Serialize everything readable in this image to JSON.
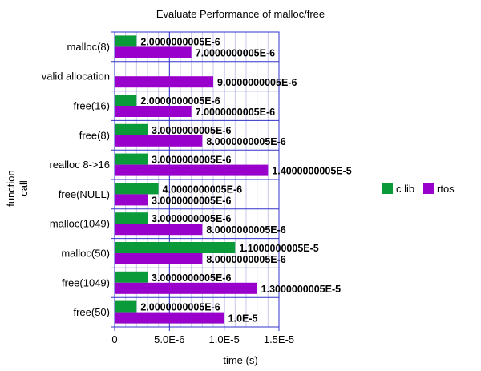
{
  "chart_data": {
    "type": "bar",
    "orientation": "horizontal",
    "title": "Evaluate Performance of malloc/free",
    "xlabel": "time (s)",
    "ylabel": "function call",
    "ylabel_lines": [
      "function",
      "call"
    ],
    "xlim": [
      0,
      1.5e-05
    ],
    "xticks": [
      0,
      5e-06,
      1e-05,
      1.5e-05
    ],
    "xtick_labels": [
      "0",
      "5.0E-6",
      "1.0E-5",
      "1.5E-5"
    ],
    "grid": true,
    "legend_position": "right",
    "categories": [
      "malloc(8)",
      "valid allocation",
      "free(16)",
      "free(8)",
      "realloc 8->16",
      "free(NULL)",
      "malloc(1049)",
      "malloc(50)",
      "free(1049)",
      "free(50)"
    ],
    "series": [
      {
        "name": "c lib",
        "color": "#0a9a3a",
        "values": [
          2.0000000005e-06,
          0,
          2.0000000005e-06,
          3.0000000005e-06,
          3.0000000005e-06,
          4.0000000005e-06,
          3.0000000005e-06,
          1.1000000005e-05,
          3.0000000005e-06,
          2.0000000005e-06
        ],
        "labels": [
          "2.0000000005E-6",
          null,
          "2.0000000005E-6",
          "3.0000000005E-6",
          "3.0000000005E-6",
          "4.0000000005E-6",
          "3.0000000005E-6",
          "1.1000000005E-5",
          "3.0000000005E-6",
          "2.0000000005E-6"
        ]
      },
      {
        "name": "rtos",
        "color": "#9900cc",
        "values": [
          7.0000000005e-06,
          9.0000000005e-06,
          7.0000000005e-06,
          8.0000000005e-06,
          1.4000000005e-05,
          3.0000000005e-06,
          8.0000000005e-06,
          8.0000000005e-06,
          1.3000000005e-05,
          1e-05
        ],
        "labels": [
          "7.0000000005E-6",
          "9.0000000005E-6",
          "7.0000000005E-6",
          "8.0000000005E-6",
          "1.4000000005E-5",
          "3.0000000005E-6",
          "8.0000000005E-6",
          "8.0000000005E-6",
          "1.3000000005E-5",
          "1.0E-5"
        ]
      }
    ]
  }
}
